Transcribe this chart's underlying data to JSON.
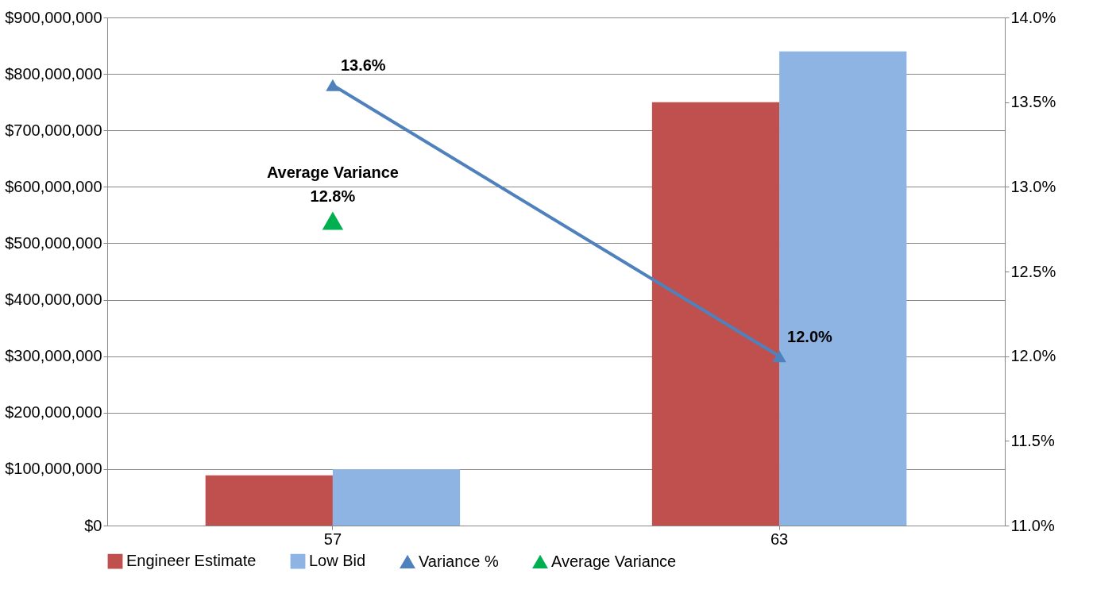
{
  "chart_data": {
    "type": "bar",
    "categories": [
      "57",
      "63"
    ],
    "series": [
      {
        "name": "Engineer Estimate",
        "color": "#c0504d",
        "values": [
          89000000,
          750000000
        ]
      },
      {
        "name": "Low Bid",
        "color": "#8eb4e3",
        "values": [
          100000000,
          840000000
        ]
      },
      {
        "name": "Variance %",
        "type": "line",
        "axis": "y2",
        "marker": "triangle",
        "color": "#4f81bd",
        "values": [
          13.6,
          12.0
        ],
        "value_labels": [
          "13.6%",
          "12.0%"
        ]
      },
      {
        "name": "Average Variance",
        "type": "scatter",
        "axis": "y2",
        "marker": "triangle",
        "color": "#00b050",
        "values": [
          12.8,
          null
        ],
        "value_labels": [
          "Average Variance\n12.8%",
          null
        ]
      }
    ],
    "ylim": [
      0,
      900000000
    ],
    "yticks": [
      {
        "value": 0,
        "label": "$0"
      },
      {
        "value": 100000000,
        "label": "$100,000,000"
      },
      {
        "value": 200000000,
        "label": "$200,000,000"
      },
      {
        "value": 300000000,
        "label": "$300,000,000"
      },
      {
        "value": 400000000,
        "label": "$400,000,000"
      },
      {
        "value": 500000000,
        "label": "$500,000,000"
      },
      {
        "value": 600000000,
        "label": "$600,000,000"
      },
      {
        "value": 700000000,
        "label": "$700,000,000"
      },
      {
        "value": 800000000,
        "label": "$800,000,000"
      },
      {
        "value": 900000000,
        "label": "$900,000,000"
      }
    ],
    "y2lim": [
      11.0,
      14.0
    ],
    "y2ticks": [
      {
        "value": 11.0,
        "label": "11.0%"
      },
      {
        "value": 11.5,
        "label": "11.5%"
      },
      {
        "value": 12.0,
        "label": "12.0%"
      },
      {
        "value": 12.5,
        "label": "12.5%"
      },
      {
        "value": 13.0,
        "label": "13.0%"
      },
      {
        "value": 13.5,
        "label": "13.5%"
      },
      {
        "value": 14.0,
        "label": "14.0%"
      }
    ],
    "grid": "y",
    "legend": "bottom"
  }
}
